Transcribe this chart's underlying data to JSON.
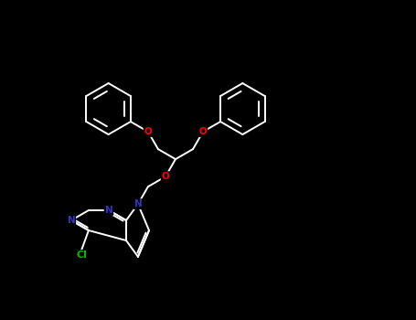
{
  "background_color": "#000000",
  "bond_color": "#ffffff",
  "atom_colors": {
    "N": "#3333bb",
    "O": "#ff0000",
    "Cl": "#00bb00",
    "C": "#ffffff"
  },
  "figsize": [
    4.55,
    3.5
  ],
  "dpi": 100
}
